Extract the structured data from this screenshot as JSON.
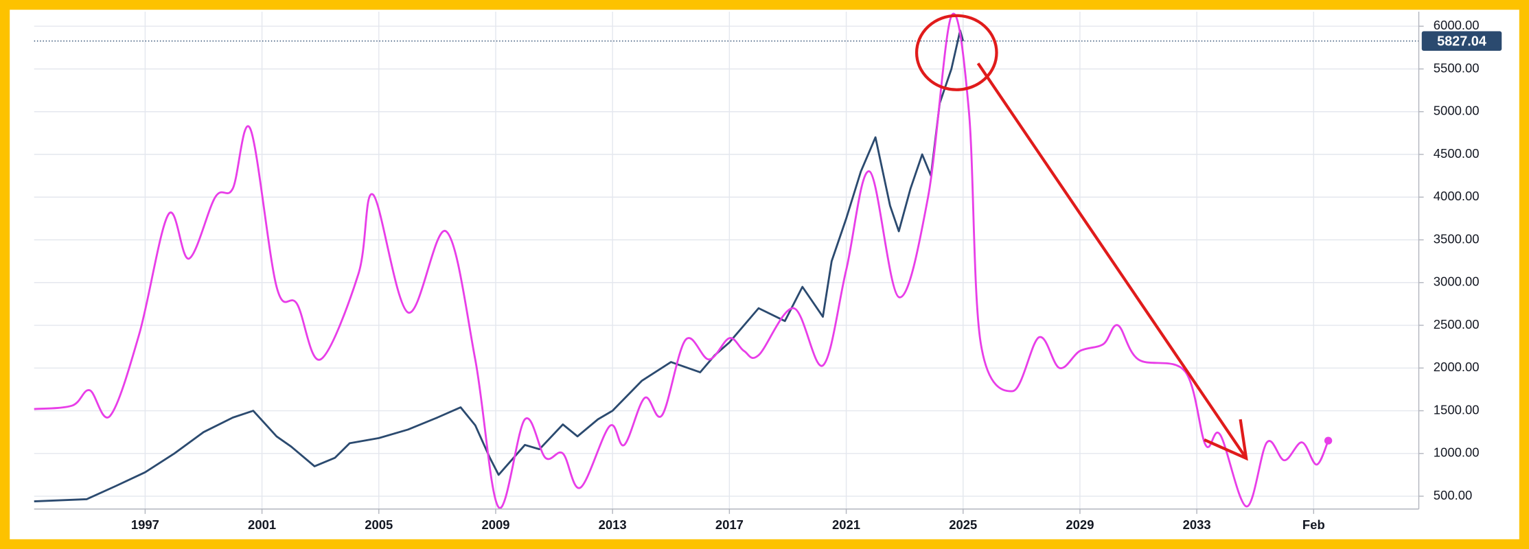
{
  "chart_data": {
    "type": "line",
    "xlim": [
      1993.2,
      2040.6
    ],
    "ylim": [
      350,
      6170
    ],
    "xticks": [
      1997,
      2001,
      2005,
      2009,
      2013,
      2017,
      2021,
      2025,
      2029,
      2033,
      {
        "value": 2037,
        "label": "Feb"
      }
    ],
    "yticks": [
      {
        "value": 500,
        "label": "500.00"
      },
      {
        "value": 1000,
        "label": "1000.00"
      },
      {
        "value": 1500,
        "label": "1500.00"
      },
      {
        "value": 2000,
        "label": "2000.00"
      },
      {
        "value": 2500,
        "label": "2500.00"
      },
      {
        "value": 3000,
        "label": "3000.00"
      },
      {
        "value": 3500,
        "label": "3500.00"
      },
      {
        "value": 4000,
        "label": "4000.00"
      },
      {
        "value": 4500,
        "label": "4500.00"
      },
      {
        "value": 5000,
        "label": "5000.00"
      },
      {
        "value": 5500,
        "label": "5500.00"
      },
      {
        "value": 6000,
        "label": "6000.00"
      }
    ],
    "grid": true,
    "last_price": 5827.04,
    "series": [
      {
        "color": "#2b4a6f",
        "x": [
          1993.2,
          1995,
          1996,
          1997,
          1998,
          1999,
          2000,
          2000.7,
          2001.5,
          2002,
          2002.8,
          2003.5,
          2004,
          2005,
          2006,
          2007,
          2007.8,
          2008.3,
          2008.8,
          2009.1,
          2010,
          2010.5,
          2011.3,
          2011.8,
          2012.5,
          2013,
          2014,
          2015,
          2016,
          2016.5,
          2017,
          2018,
          2018.9,
          2019.5,
          2020.2,
          2020.5,
          2021,
          2021.5,
          2022,
          2022.5,
          2022.8,
          2023.2,
          2023.6,
          2023.9,
          2024.2,
          2024.6,
          2024.9,
          2025.0
        ],
        "values": [
          440,
          465,
          620,
          780,
          1000,
          1250,
          1420,
          1500,
          1200,
          1080,
          850,
          950,
          1120,
          1180,
          1280,
          1420,
          1540,
          1330,
          950,
          750,
          1100,
          1050,
          1340,
          1200,
          1400,
          1500,
          1850,
          2070,
          1950,
          2150,
          2300,
          2700,
          2550,
          2950,
          2600,
          3250,
          3750,
          4300,
          4700,
          3900,
          3600,
          4100,
          4500,
          4250,
          5100,
          5500,
          5950,
          5827
        ]
      },
      {
        "color": "#e83ee8",
        "x": [
          1993.2,
          1994.5,
          1995.1,
          1995.8,
          1996.8,
          1997.8,
          1998.5,
          1999.4,
          2000,
          2000.6,
          2001.5,
          2002.2,
          2003,
          2004.3,
          2004.8,
          2006,
          2007.3,
          2008.3,
          2009.1,
          2010,
          2010.7,
          2011.3,
          2011.9,
          2012.9,
          2013.4,
          2014.1,
          2014.7,
          2015.5,
          2016.3,
          2017,
          2017.5,
          2018,
          2019.2,
          2020.2,
          2021,
          2021.8,
          2022.8,
          2023.8,
          2024.6,
          2025.2,
          2025.6,
          2026.7,
          2027.6,
          2028.3,
          2029,
          2029.8,
          2030.3,
          2031,
          2032.6,
          2033.3,
          2033.8,
          2034.7,
          2035.4,
          2036,
          2036.6,
          2037.1,
          2037.5
        ],
        "values": [
          1520,
          1560,
          1740,
          1440,
          2400,
          3800,
          3280,
          4000,
          4100,
          4800,
          2950,
          2750,
          2100,
          3100,
          4030,
          2650,
          3600,
          2100,
          370,
          1400,
          950,
          1000,
          600,
          1320,
          1100,
          1650,
          1450,
          2330,
          2100,
          2350,
          2200,
          2150,
          2700,
          2030,
          3150,
          4300,
          2830,
          4000,
          6120,
          5000,
          2300,
          1730,
          2360,
          2000,
          2200,
          2280,
          2500,
          2100,
          1960,
          1100,
          1220,
          380,
          1130,
          920,
          1130,
          870,
          1150
        ]
      }
    ]
  }
}
